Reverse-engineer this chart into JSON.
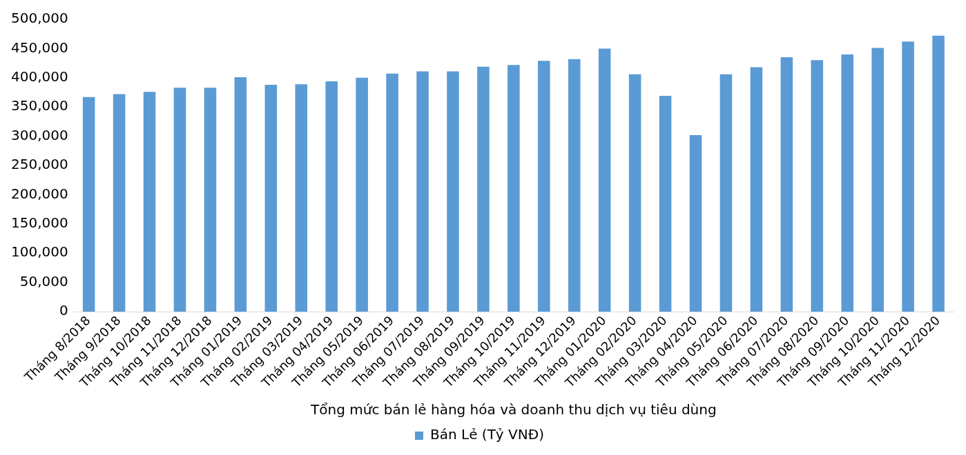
{
  "chart_data": {
    "type": "bar",
    "xlabel": "Tổng mức bán lẻ hàng hóa và doanh thu dịch vụ tiêu dùng",
    "categories": [
      "Tháng 8/2018",
      "Tháng 9/2018",
      "Tháng 10/2018",
      "Tháng 11/2018",
      "Tháng 12/2018",
      "Tháng 01/2019",
      "Tháng 02/2019",
      "Tháng 03/2019",
      "Tháng 04/2019",
      "Tháng 05/2019",
      "Tháng 06/2019",
      "Tháng 07/2019",
      "Tháng 08/2019",
      "Tháng 09/2019",
      "Tháng 10/2019",
      "Tháng 11/2019",
      "Tháng 12/2019",
      "Tháng 01/2020",
      "Tháng 02/2020",
      "Tháng 03/2020",
      "Tháng 04/2020",
      "Tháng 05/2020",
      "Tháng 06/2020",
      "Tháng 07/2020",
      "Tháng 08/2020",
      "Tháng 09/2020",
      "Tháng 10/2020",
      "Tháng 11/2020",
      "Tháng 12/2020"
    ],
    "series": [
      {
        "name": "Bán Lẻ (Tỷ VNĐ)",
        "color": "#5b9bd5",
        "values": [
          367000,
          372000,
          376000,
          383000,
          383000,
          401000,
          388000,
          389000,
          394000,
          400000,
          407000,
          411000,
          411000,
          419000,
          422000,
          429000,
          432000,
          450000,
          406000,
          369000,
          302000,
          406000,
          418000,
          435000,
          430000,
          440000,
          451000,
          462000,
          472000
        ]
      }
    ],
    "ylim": [
      0,
      500000
    ],
    "yticks": [
      0,
      {
        "value": 50000,
        "label": "50,000"
      },
      {
        "value": 100000,
        "label": "100,000"
      },
      {
        "value": 150000,
        "label": "150,000"
      },
      {
        "value": 200000,
        "label": "200,000"
      },
      {
        "value": 250000,
        "label": "250,000"
      },
      {
        "value": 300000,
        "label": "300,000"
      },
      {
        "value": 350000,
        "label": "350,000"
      },
      {
        "value": 400000,
        "label": "400,000"
      },
      {
        "value": 450000,
        "label": "450,000"
      },
      {
        "value": 500000,
        "label": "500,000"
      }
    ],
    "grid": false,
    "legend": "bottom"
  }
}
